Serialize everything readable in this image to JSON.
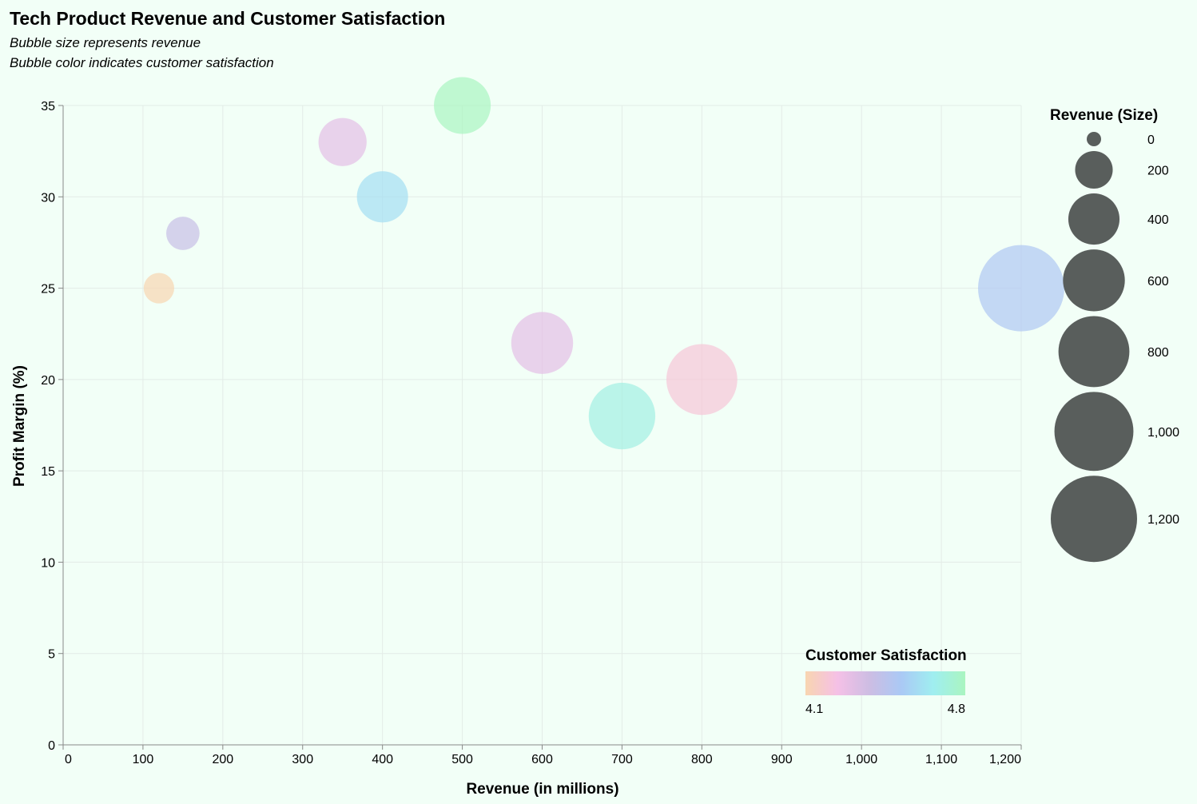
{
  "chart_data": {
    "type": "scatter",
    "title": "Tech Product Revenue and Customer Satisfaction",
    "subtitle": [
      "Bubble size represents revenue",
      "Bubble color indicates customer satisfaction"
    ],
    "xlabel": "Revenue (in millions)",
    "ylabel": "Profit Margin (%)",
    "xlim": [
      0,
      1200
    ],
    "ylim": [
      0,
      35
    ],
    "x_ticks": [
      0,
      100,
      200,
      300,
      400,
      500,
      600,
      700,
      800,
      900,
      1000,
      1100,
      1200
    ],
    "x_tick_labels": [
      "0",
      "100",
      "200",
      "300",
      "400",
      "500",
      "600",
      "700",
      "800",
      "900",
      "1,000",
      "1,100",
      "1,200"
    ],
    "y_ticks": [
      0,
      5,
      10,
      15,
      20,
      25,
      30,
      35
    ],
    "y_tick_labels": [
      "0",
      "5",
      "10",
      "15",
      "20",
      "25",
      "30",
      "35"
    ],
    "grid": true,
    "points": [
      {
        "revenue": 120,
        "profit_margin": 25,
        "satisfaction": 4.1
      },
      {
        "revenue": 150,
        "profit_margin": 28,
        "satisfaction": 4.4
      },
      {
        "revenue": 350,
        "profit_margin": 33,
        "satisfaction": 4.3
      },
      {
        "revenue": 400,
        "profit_margin": 30,
        "satisfaction": 4.6
      },
      {
        "revenue": 500,
        "profit_margin": 35,
        "satisfaction": 4.8
      },
      {
        "revenue": 600,
        "profit_margin": 22,
        "satisfaction": 4.3
      },
      {
        "revenue": 700,
        "profit_margin": 18,
        "satisfaction": 4.7
      },
      {
        "revenue": 800,
        "profit_margin": 20,
        "satisfaction": 4.2
      },
      {
        "revenue": 1200,
        "profit_margin": 25,
        "satisfaction": 4.5
      }
    ],
    "size_legend": {
      "title": "Revenue (Size)",
      "values": [
        0,
        200,
        400,
        600,
        800,
        1000,
        1200
      ],
      "labels": [
        "0",
        "200",
        "400",
        "600",
        "800",
        "1,000",
        "1,200"
      ],
      "color": "#595e5c"
    },
    "color_legend": {
      "title": "Customer Satisfaction",
      "min": 4.1,
      "max": 4.8,
      "min_label": "4.1",
      "max_label": "4.8",
      "placement": "bottom-right",
      "stops": [
        "#f8d5b0",
        "#f5c0e6",
        "#cdbde3",
        "#aac9f5",
        "#9feef0",
        "#aaf5c0"
      ]
    },
    "colors": {
      "background": "#f2fff7",
      "grid": "#e3ece7",
      "axis": "#888888",
      "bubble_opacity": 0.7
    }
  }
}
